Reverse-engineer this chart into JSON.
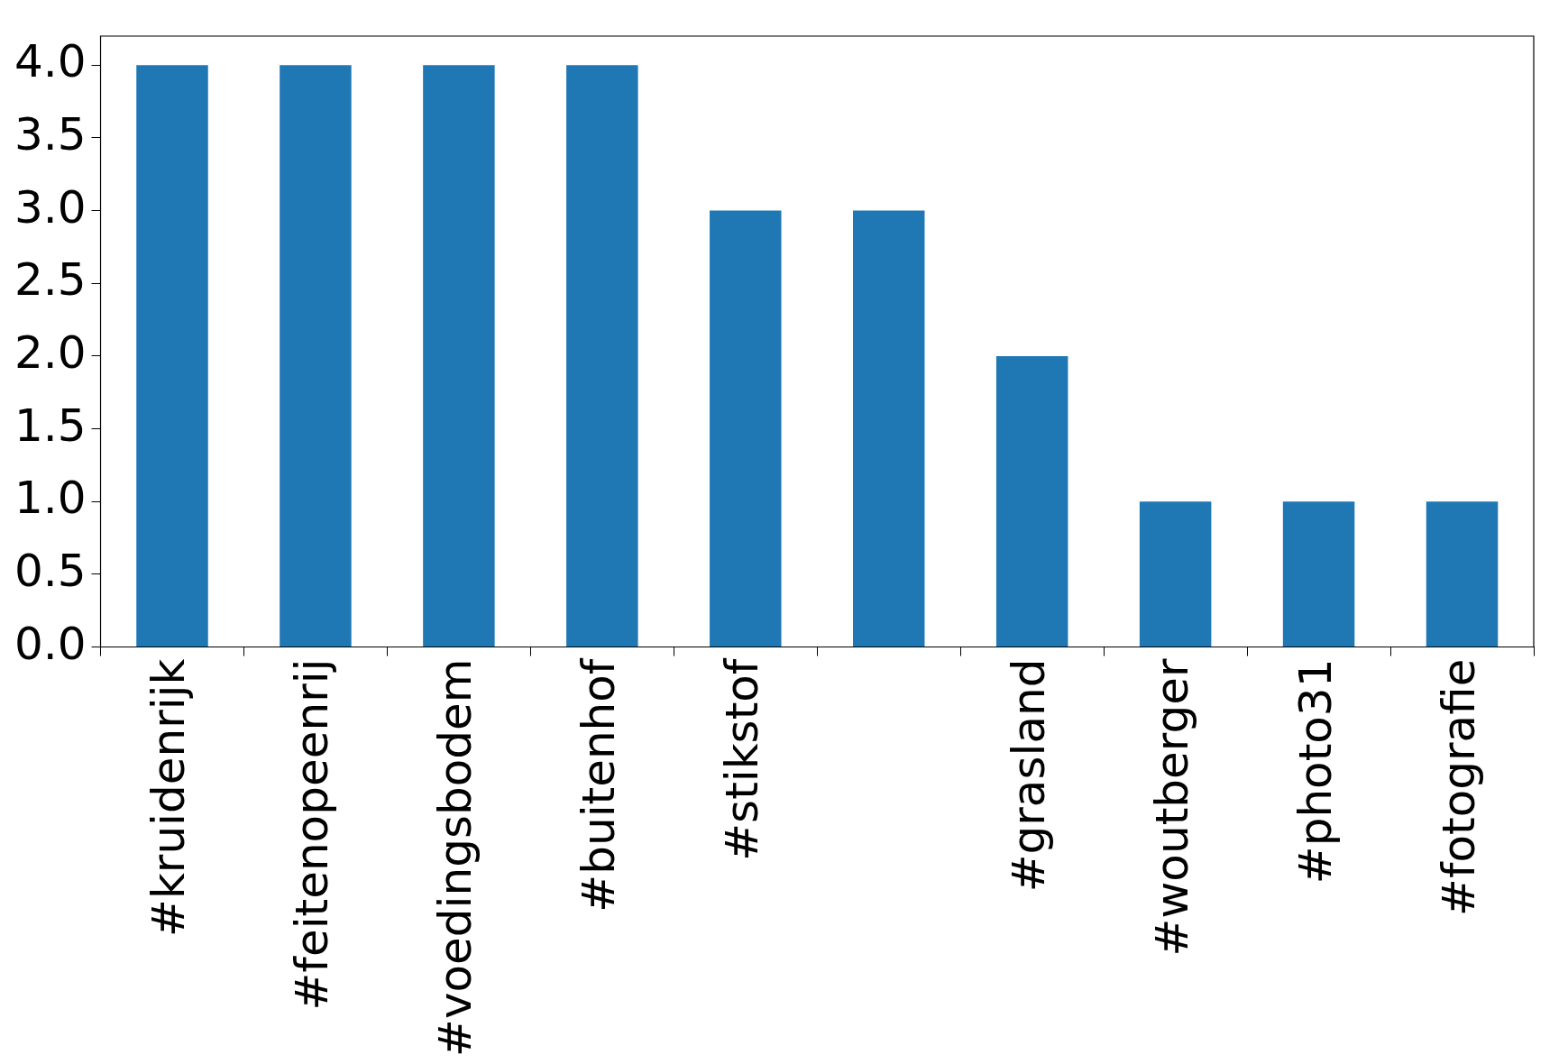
{
  "chart_data": {
    "type": "bar",
    "categories": [
      "#kruidenrijk",
      "#feitenopeenrij",
      "#voedingsbodem",
      "#buitenhof",
      "#stikstof",
      null,
      "#grasland",
      "#woutberger",
      "#photo31",
      "#fotografie"
    ],
    "values": [
      4,
      4,
      4,
      4,
      3,
      3,
      2,
      1,
      1,
      1
    ],
    "color": "#1f77b4",
    "ylim": [
      0,
      4.2
    ],
    "yticks": [
      {
        "value": 0,
        "label": "0.0"
      },
      {
        "value": 0.5,
        "label": "0.5"
      },
      {
        "value": 1,
        "label": "1.0"
      },
      {
        "value": 1.5,
        "label": "1.5"
      },
      {
        "value": 2,
        "label": "2.0"
      },
      {
        "value": 2.5,
        "label": "2.5"
      },
      {
        "value": 3,
        "label": "3.0"
      },
      {
        "value": 3.5,
        "label": "3.5"
      },
      {
        "value": 4,
        "label": "4.0"
      }
    ],
    "grid": false,
    "legend": false
  }
}
